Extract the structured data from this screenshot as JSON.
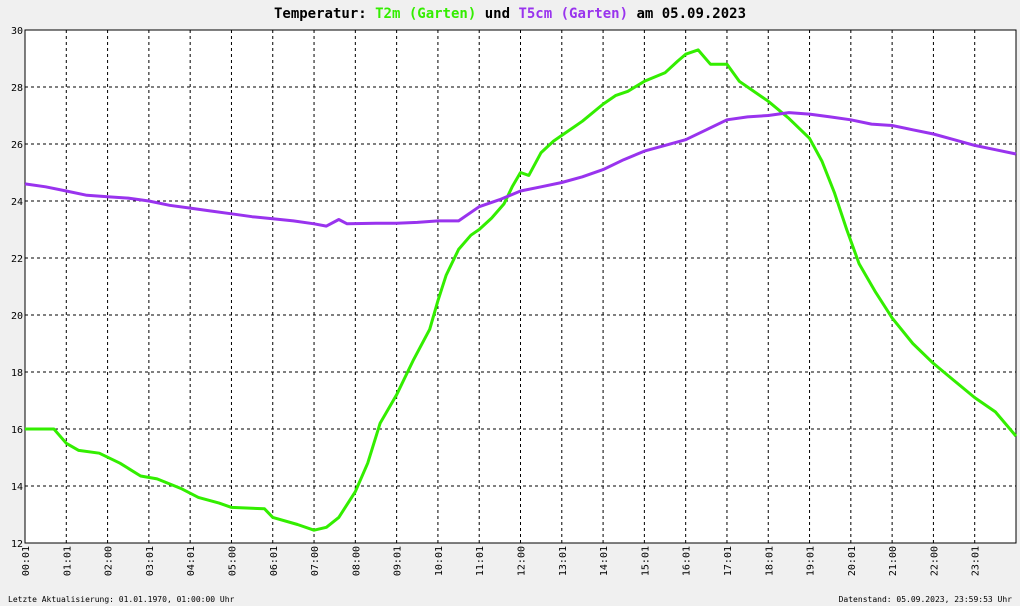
{
  "chart_data": {
    "type": "line",
    "title_parts": [
      {
        "text": "Temperatur: ",
        "color": "#000000"
      },
      {
        "text": "T2m (Garten)",
        "color": "#33ee00"
      },
      {
        "text": " und ",
        "color": "#000000"
      },
      {
        "text": "T5cm (Garten)",
        "color": "#9933ee"
      },
      {
        "text": " am 05.09.2023",
        "color": "#000000"
      }
    ],
    "xlabel": "",
    "ylabel": "",
    "ylim": [
      12,
      30
    ],
    "yticks": [
      "12",
      "14",
      "16",
      "18",
      "20",
      "22",
      "24",
      "26",
      "28",
      "30"
    ],
    "xlim": [
      0,
      24
    ],
    "xticks": [
      "00:01",
      "01:01",
      "02:00",
      "03:01",
      "04:01",
      "05:00",
      "06:01",
      "07:00",
      "08:00",
      "09:01",
      "10:01",
      "11:01",
      "12:00",
      "13:01",
      "14:01",
      "15:01",
      "16:01",
      "17:01",
      "18:01",
      "19:01",
      "20:01",
      "21:00",
      "22:00",
      "23:01"
    ],
    "grid": true,
    "series": [
      {
        "name": "T2m (Garten)",
        "color": "#33ee00",
        "points": [
          [
            0,
            16.0
          ],
          [
            0.7,
            16.0
          ],
          [
            1.0,
            15.5
          ],
          [
            1.3,
            15.25
          ],
          [
            1.8,
            15.15
          ],
          [
            2.3,
            14.8
          ],
          [
            2.8,
            14.35
          ],
          [
            3.2,
            14.25
          ],
          [
            3.8,
            13.9
          ],
          [
            4.2,
            13.6
          ],
          [
            4.7,
            13.4
          ],
          [
            5.0,
            13.25
          ],
          [
            5.8,
            13.2
          ],
          [
            6.0,
            12.9
          ],
          [
            6.6,
            12.65
          ],
          [
            7.0,
            12.45
          ],
          [
            7.3,
            12.55
          ],
          [
            7.6,
            12.9
          ],
          [
            8.0,
            13.8
          ],
          [
            8.3,
            14.8
          ],
          [
            8.6,
            16.2
          ],
          [
            9.0,
            17.2
          ],
          [
            9.4,
            18.4
          ],
          [
            9.8,
            19.5
          ],
          [
            10.0,
            20.5
          ],
          [
            10.2,
            21.4
          ],
          [
            10.5,
            22.3
          ],
          [
            10.8,
            22.8
          ],
          [
            11.0,
            23.0
          ],
          [
            11.3,
            23.4
          ],
          [
            11.6,
            23.9
          ],
          [
            11.8,
            24.5
          ],
          [
            12.0,
            25.0
          ],
          [
            12.2,
            24.9
          ],
          [
            12.5,
            25.7
          ],
          [
            12.8,
            26.1
          ],
          [
            13.0,
            26.3
          ],
          [
            13.5,
            26.8
          ],
          [
            14.0,
            27.4
          ],
          [
            14.3,
            27.7
          ],
          [
            14.6,
            27.85
          ],
          [
            15.0,
            28.2
          ],
          [
            15.5,
            28.5
          ],
          [
            15.8,
            28.9
          ],
          [
            16.0,
            29.15
          ],
          [
            16.3,
            29.3
          ],
          [
            16.6,
            28.8
          ],
          [
            17.0,
            28.8
          ],
          [
            17.3,
            28.2
          ],
          [
            17.6,
            27.9
          ],
          [
            18.0,
            27.5
          ],
          [
            18.5,
            26.9
          ],
          [
            19.0,
            26.2
          ],
          [
            19.3,
            25.4
          ],
          [
            19.6,
            24.3
          ],
          [
            19.9,
            23.0
          ],
          [
            20.2,
            21.8
          ],
          [
            20.6,
            20.8
          ],
          [
            21.0,
            19.9
          ],
          [
            21.5,
            19.0
          ],
          [
            22.0,
            18.3
          ],
          [
            22.5,
            17.7
          ],
          [
            23.0,
            17.1
          ],
          [
            23.5,
            16.6
          ],
          [
            24.0,
            15.75
          ]
        ]
      },
      {
        "name": "T5cm (Garten)",
        "color": "#9933ee",
        "points": [
          [
            0,
            24.6
          ],
          [
            0.5,
            24.5
          ],
          [
            1.0,
            24.35
          ],
          [
            1.5,
            24.2
          ],
          [
            2.0,
            24.15
          ],
          [
            2.5,
            24.1
          ],
          [
            3.0,
            24.0
          ],
          [
            3.5,
            23.85
          ],
          [
            4.0,
            23.75
          ],
          [
            4.5,
            23.65
          ],
          [
            5.0,
            23.55
          ],
          [
            5.5,
            23.45
          ],
          [
            6.0,
            23.38
          ],
          [
            6.5,
            23.3
          ],
          [
            7.0,
            23.2
          ],
          [
            7.3,
            23.12
          ],
          [
            7.6,
            23.35
          ],
          [
            7.8,
            23.2
          ],
          [
            8.5,
            23.22
          ],
          [
            9.0,
            23.22
          ],
          [
            9.5,
            23.25
          ],
          [
            10.0,
            23.3
          ],
          [
            10.5,
            23.3
          ],
          [
            11.0,
            23.8
          ],
          [
            11.5,
            24.05
          ],
          [
            12.0,
            24.35
          ],
          [
            12.5,
            24.5
          ],
          [
            13.0,
            24.65
          ],
          [
            13.5,
            24.85
          ],
          [
            14.0,
            25.1
          ],
          [
            14.5,
            25.45
          ],
          [
            15.0,
            25.75
          ],
          [
            15.5,
            25.95
          ],
          [
            16.0,
            26.15
          ],
          [
            16.5,
            26.5
          ],
          [
            17.0,
            26.85
          ],
          [
            17.5,
            26.95
          ],
          [
            18.0,
            27.0
          ],
          [
            18.5,
            27.1
          ],
          [
            19.0,
            27.05
          ],
          [
            19.5,
            26.95
          ],
          [
            20.0,
            26.85
          ],
          [
            20.5,
            26.7
          ],
          [
            21.0,
            26.65
          ],
          [
            21.5,
            26.5
          ],
          [
            22.0,
            26.35
          ],
          [
            22.5,
            26.15
          ],
          [
            23.0,
            25.95
          ],
          [
            23.5,
            25.8
          ],
          [
            24.0,
            25.65
          ]
        ]
      }
    ]
  },
  "footer": {
    "left": "Letzte Aktualisierung: 01.01.1970, 01:00:00 Uhr",
    "right": "Datenstand: 05.09.2023, 23:59:53 Uhr"
  }
}
